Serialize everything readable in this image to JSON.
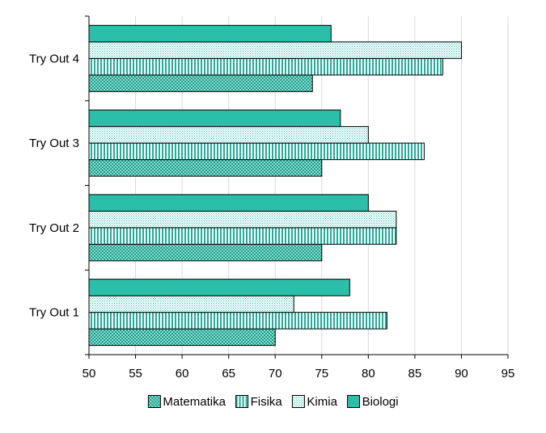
{
  "chart_data": {
    "type": "bar",
    "orientation": "horizontal",
    "categories": [
      "Try Out 1",
      "Try Out 2",
      "Try Out 3",
      "Try Out 4"
    ],
    "series": [
      {
        "name": "Matematika",
        "values": [
          70,
          75,
          75,
          74
        ],
        "color": "#2bbfaa",
        "pattern": "dots"
      },
      {
        "name": "Fisika",
        "values": [
          82,
          83,
          86,
          88
        ],
        "color": "#2bbfaa",
        "pattern": "vertical-lines"
      },
      {
        "name": "Kimia",
        "values": [
          72,
          83,
          80,
          90
        ],
        "color": "#2bbfaa",
        "pattern": "fine-dots"
      },
      {
        "name": "Biologi",
        "values": [
          78,
          80,
          77,
          76
        ],
        "color": "#2bbfaa",
        "pattern": "solid"
      }
    ],
    "xlim": [
      50,
      95
    ],
    "xticks": [
      "50",
      "55",
      "60",
      "65",
      "70",
      "75",
      "80",
      "85",
      "90",
      "95"
    ],
    "grid": "vertical",
    "legend": "bottom",
    "title": "",
    "xlabel": "",
    "ylabel": ""
  }
}
